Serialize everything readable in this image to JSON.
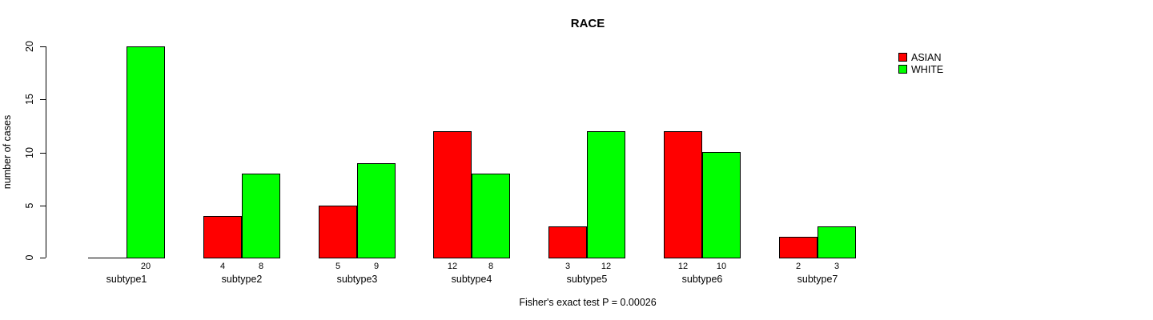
{
  "title": "RACE",
  "footer": "Fisher's exact test P = 0.00026",
  "y_axis": {
    "label": "number of cases"
  },
  "legend": {
    "items": [
      {
        "label": "ASIAN",
        "color": "#ff0000"
      },
      {
        "label": "WHITE",
        "color": "#00ff00"
      }
    ]
  },
  "chart_data": {
    "type": "bar",
    "title": "RACE",
    "xlabel": "",
    "ylabel": "number of cases",
    "ylim": [
      0,
      20
    ],
    "yticks": [
      0,
      5,
      10,
      15,
      20
    ],
    "grid": false,
    "legend_position": "top-right",
    "categories": [
      "subtype1",
      "subtype2",
      "subtype3",
      "subtype4",
      "subtype5",
      "subtype6",
      "subtype7"
    ],
    "series": [
      {
        "name": "ASIAN",
        "color": "#ff0000",
        "values": [
          0,
          4,
          5,
          12,
          3,
          12,
          2
        ]
      },
      {
        "name": "WHITE",
        "color": "#00ff00",
        "values": [
          20,
          8,
          9,
          8,
          12,
          10,
          3
        ]
      }
    ],
    "bar_value_labels": [
      [
        "",
        "20"
      ],
      [
        "4",
        "8"
      ],
      [
        "5",
        "9"
      ],
      [
        "12",
        "8"
      ],
      [
        "3",
        "12"
      ],
      [
        "12",
        "10"
      ],
      [
        "2",
        "3"
      ]
    ],
    "bar_edge_color": "#000000",
    "annotation": "Fisher's exact test P = 0.00026"
  }
}
